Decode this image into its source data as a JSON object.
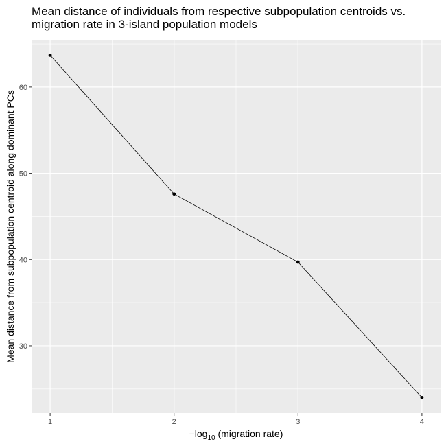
{
  "chart_data": {
    "type": "line",
    "title_lines": [
      "Mean distance of individuals from respective subpopulation centroids vs.",
      "migration rate in 3-island population models"
    ],
    "xlabel": {
      "prefix": "−log",
      "subscript": "10",
      "suffix": " (migration rate)"
    },
    "ylabel": "Mean distance from subpopulation centroid along dominant PCs",
    "x": [
      1,
      2,
      3,
      4
    ],
    "y": [
      63.7,
      47.6,
      39.7,
      24.0
    ],
    "xlim": [
      0.85,
      4.15
    ],
    "ylim": [
      22.2,
      65.4
    ],
    "xticks": [
      1,
      2,
      3,
      4
    ],
    "yticks": [
      30,
      40,
      50,
      60
    ],
    "grid": true,
    "legend": "none",
    "colors": {
      "panel_background": "#ebebeb",
      "grid": "#ffffff",
      "line": "#000000",
      "point": "#000000"
    }
  }
}
